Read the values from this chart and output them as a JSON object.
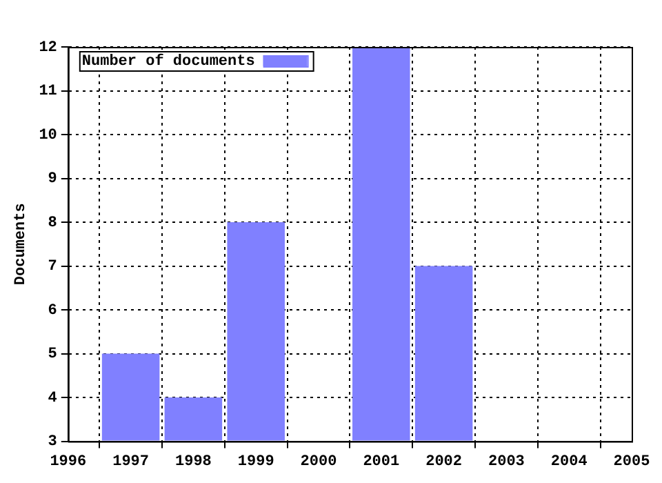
{
  "chart_data": {
    "type": "bar",
    "ylabel": "Documents",
    "x": [
      1997,
      1998,
      1999,
      2001,
      2002
    ],
    "series": [
      {
        "name": "Number of documents",
        "color": "#8080ff",
        "values": [
          5,
          4,
          8,
          12,
          7
        ]
      }
    ],
    "xlim": [
      1996,
      2005
    ],
    "xticks": [
      1996,
      1997,
      1998,
      1999,
      2000,
      2001,
      2002,
      2003,
      2004,
      2005
    ],
    "ylim": [
      3,
      12
    ],
    "yticks": [
      3,
      4,
      5,
      6,
      7,
      8,
      9,
      10,
      11,
      12
    ],
    "grid": true,
    "legend": "top left"
  }
}
